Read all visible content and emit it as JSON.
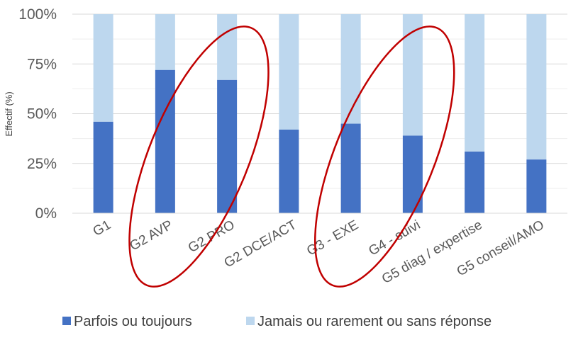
{
  "chart_data": {
    "type": "bar",
    "stacked": true,
    "ylabel": "Effectif (%)",
    "xlabel": "",
    "ylim": [
      0,
      100
    ],
    "yticks": [
      "0%",
      "25%",
      "50%",
      "75%",
      "100%"
    ],
    "yticks_values": [
      0,
      25,
      50,
      75,
      100
    ],
    "grid": true,
    "legend_position": "bottom",
    "categories": [
      "G1",
      "G2 AVP",
      "G2 PRO",
      "G2 DCE/ACT",
      "G3 - EXE",
      "G4 - suivi",
      "G5 diag / expertise",
      "G5 conseil/AMO"
    ],
    "series": [
      {
        "name": "Parfois ou toujours",
        "color": "#4472c4",
        "values": [
          46,
          72,
          67,
          42,
          45,
          39,
          31,
          27
        ]
      },
      {
        "name": "Jamais ou rarement ou sans réponse",
        "color": "#bdd7ee",
        "values": [
          54,
          28,
          33,
          58,
          55,
          61,
          69,
          73
        ]
      }
    ],
    "annotations": [
      {
        "shape": "ellipse",
        "color": "#c00000",
        "encloses": [
          "G2 AVP",
          "G2 PRO"
        ]
      },
      {
        "shape": "ellipse",
        "color": "#c00000",
        "encloses": [
          "G3 - EXE",
          "G4 - suivi"
        ]
      }
    ]
  }
}
